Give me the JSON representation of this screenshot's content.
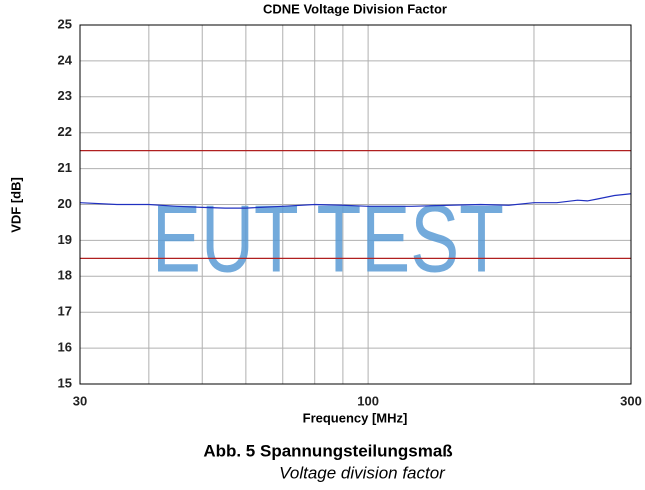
{
  "chart_data": {
    "type": "line",
    "title": "CDNE Voltage Division Factor",
    "xlabel": "Frequency [MHz]",
    "ylabel": "VDF [dB]",
    "caption": "Abb. 5 Spannungsteilungsmaß",
    "subcaption": "Voltage division factor",
    "watermark": "EUT TEST",
    "xscale": "log",
    "grid": true,
    "xlim": [
      30,
      300
    ],
    "xticks": [
      30,
      100,
      300
    ],
    "xminor": [
      40,
      50,
      60,
      70,
      80,
      90,
      200
    ],
    "ylim": [
      15,
      25
    ],
    "yticks": [
      15,
      16,
      17,
      18,
      19,
      20,
      21,
      22,
      23,
      24,
      25
    ],
    "x": [
      30,
      35,
      40,
      45,
      50,
      55,
      60,
      70,
      80,
      90,
      100,
      120,
      140,
      160,
      180,
      200,
      220,
      240,
      250,
      260,
      280,
      300
    ],
    "series": [
      {
        "color": "#2030c0",
        "values": [
          20.05,
          20.0,
          20.0,
          19.95,
          19.92,
          19.9,
          19.9,
          19.95,
          20.0,
          19.98,
          19.95,
          19.95,
          19.98,
          20.0,
          19.98,
          20.05,
          20.05,
          20.12,
          20.1,
          20.15,
          20.25,
          20.3
        ]
      },
      {
        "color": "#b02020",
        "values": [
          21.5,
          21.5,
          21.5,
          21.5,
          21.5,
          21.5,
          21.5,
          21.5,
          21.5,
          21.5,
          21.5,
          21.5,
          21.5,
          21.5,
          21.5,
          21.5,
          21.5,
          21.5,
          21.5,
          21.5,
          21.5,
          21.5
        ]
      },
      {
        "color": "#b02020",
        "values": [
          18.5,
          18.5,
          18.5,
          18.5,
          18.5,
          18.5,
          18.5,
          18.5,
          18.5,
          18.5,
          18.5,
          18.5,
          18.5,
          18.5,
          18.5,
          18.5,
          18.5,
          18.5,
          18.5,
          18.5,
          18.5,
          18.5
        ]
      }
    ]
  }
}
